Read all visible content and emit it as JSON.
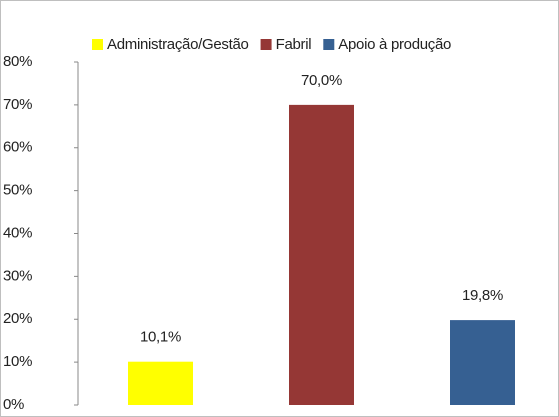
{
  "chart_data": {
    "type": "bar",
    "series": [
      {
        "name": "Administração/Gestão",
        "color": "#ffff00",
        "values": [
          10.1
        ],
        "value_labels": [
          "10,1%"
        ]
      },
      {
        "name": "Fabril",
        "color": "#953735",
        "values": [
          70.0
        ],
        "value_labels": [
          "70,0%"
        ]
      },
      {
        "name": "Apoio à produção",
        "color": "#366092",
        "values": [
          19.8
        ],
        "value_labels": [
          "19,8%"
        ]
      }
    ],
    "ylim": [
      0,
      80
    ],
    "yticks": [
      {
        "value": 0,
        "label": "0%"
      },
      {
        "value": 10,
        "label": "10%"
      },
      {
        "value": 20,
        "label": "20%"
      },
      {
        "value": 30,
        "label": "30%"
      },
      {
        "value": 40,
        "label": "40%"
      },
      {
        "value": 50,
        "label": "50%"
      },
      {
        "value": 60,
        "label": "60%"
      },
      {
        "value": 70,
        "label": "70%"
      },
      {
        "value": 80,
        "label": "80%"
      }
    ],
    "legend": "top"
  }
}
